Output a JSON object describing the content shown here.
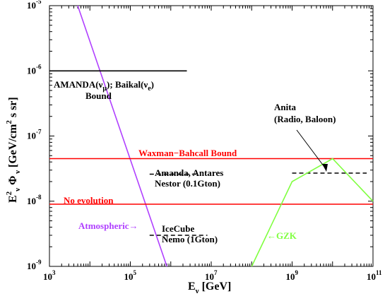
{
  "chart_data": {
    "type": "line",
    "title": "",
    "xlabel": "E_ν [GeV]",
    "ylabel": "E_ν^2 Φ_ν [GeV/cm^2 s sr]",
    "xscale": "log",
    "yscale": "log",
    "xlim": [
      1000,
      100000000000
    ],
    "ylim": [
      1e-09,
      1e-05
    ],
    "grid": false,
    "x_ticks": [
      {
        "base": "10",
        "exp": "3",
        "value": 1000
      },
      {
        "base": "10",
        "exp": "5",
        "value": 100000
      },
      {
        "base": "10",
        "exp": "7",
        "value": 10000000
      },
      {
        "base": "10",
        "exp": "9",
        "value": 1000000000
      },
      {
        "base": "10",
        "exp": "11",
        "value": 100000000000
      }
    ],
    "y_ticks": [
      {
        "base": "10",
        "exp": "-9",
        "value": 1e-09
      },
      {
        "base": "10",
        "exp": "-8",
        "value": 1e-08
      },
      {
        "base": "10",
        "exp": "-7",
        "value": 1e-07
      },
      {
        "base": "10",
        "exp": "-6",
        "value": 1e-06
      },
      {
        "base": "10",
        "exp": "-5",
        "value": 1e-05
      }
    ],
    "series": [
      {
        "color": "#b040ff",
        "dash": "solid",
        "x": [
          5000,
          800000
        ],
        "y": [
          1e-05,
          1e-09
        ]
      },
      {
        "color": "#ff0000",
        "dash": "solid",
        "x": [
          1000,
          100000000000
        ],
        "y": [
          4.5e-08,
          4.5e-08
        ]
      },
      {
        "color": "#ff0000",
        "dash": "solid",
        "x": [
          1000,
          100000000000
        ],
        "y": [
          9e-09,
          9e-09
        ]
      },
      {
        "color": "#000000",
        "dash": "solid",
        "x": [
          1000,
          2500000
        ],
        "y": [
          1e-06,
          1e-06
        ]
      },
      {
        "color": "#000000",
        "dash": "dashed",
        "x": [
          300000,
          5000000
        ],
        "y": [
          2.6e-08,
          2.6e-08
        ]
      },
      {
        "color": "#000000",
        "dash": "dashed",
        "x": [
          300000,
          8000000
        ],
        "y": [
          3e-09,
          3e-09
        ]
      },
      {
        "color": "#000000",
        "dash": "dashed",
        "x": [
          1000000000,
          70000000000
        ],
        "y": [
          2.7e-08,
          2.7e-08
        ]
      },
      {
        "color": "#80ff40",
        "dash": "solid",
        "x": [
          100000000,
          1000000000,
          10000000000,
          100000000000
        ],
        "y": [
          1e-09,
          2e-08,
          4.5e-08,
          1e-08
        ]
      }
    ],
    "annotations": [
      {
        "id": "amanda-baikal",
        "lines": [
          "AMANDA(ν_μ); Baikal(ν_e)",
          "Bound"
        ],
        "color": "#000000"
      },
      {
        "id": "anita",
        "lines": [
          "Anita",
          "(Radio, Baloon)"
        ],
        "color": "#000000"
      },
      {
        "id": "waxman-bahcall",
        "lines": [
          "Waxman−Bahcall Bound"
        ],
        "color": "#ff0000"
      },
      {
        "id": "amanda-antares",
        "lines": [
          "Amanda, Antares",
          "Nestor (0.1Gton)"
        ],
        "color": "#000000"
      },
      {
        "id": "no-evolution",
        "lines": [
          "No evolution"
        ],
        "color": "#ff0000"
      },
      {
        "id": "atmospheric",
        "lines": [
          "Atmospheric→"
        ],
        "color": "#b040ff"
      },
      {
        "id": "icecube",
        "lines": [
          "IceCube",
          "Nemo (1Gton)"
        ],
        "color": "#000000"
      },
      {
        "id": "gzk",
        "lines": [
          "←GZK"
        ],
        "color": "#80ff40"
      }
    ]
  }
}
